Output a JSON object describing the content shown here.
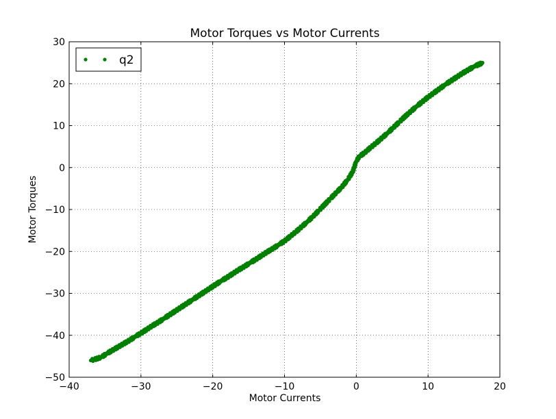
{
  "chart_data": {
    "type": "scatter",
    "title": "Motor Torques vs Motor Currents",
    "xlabel": "Motor Currents",
    "ylabel": "Motor Torques",
    "xlim": [
      -40,
      20
    ],
    "ylim": [
      -50,
      30
    ],
    "xticks": [
      -40,
      -30,
      -20,
      -10,
      0,
      10,
      20
    ],
    "yticks": [
      -50,
      -40,
      -30,
      -20,
      -10,
      0,
      10,
      20,
      30
    ],
    "xtick_labels": [
      "−40",
      "−30",
      "−20",
      "−10",
      "0",
      "10",
      "20"
    ],
    "ytick_labels": [
      "−50",
      "−40",
      "−30",
      "−20",
      "−10",
      "0",
      "10",
      "20",
      "30"
    ],
    "grid": true,
    "legend_position": "top-left",
    "series": [
      {
        "name": "q2",
        "color": "#007f00",
        "marker": "dot",
        "points": [
          [
            -37.0,
            -46.0
          ],
          [
            -36.2,
            -45.6
          ],
          [
            -35.5,
            -45.2
          ],
          [
            -34.8,
            -44.4
          ],
          [
            -34.0,
            -43.6
          ],
          [
            -33.2,
            -42.8
          ],
          [
            -32.4,
            -42.0
          ],
          [
            -31.6,
            -41.2
          ],
          [
            -30.8,
            -40.3
          ],
          [
            -30.0,
            -39.5
          ],
          [
            -29.2,
            -38.6
          ],
          [
            -28.4,
            -37.7
          ],
          [
            -27.6,
            -36.9
          ],
          [
            -26.8,
            -36.0
          ],
          [
            -26.0,
            -35.1
          ],
          [
            -25.2,
            -34.2
          ],
          [
            -24.4,
            -33.3
          ],
          [
            -23.6,
            -32.4
          ],
          [
            -22.8,
            -31.5
          ],
          [
            -22.0,
            -30.6
          ],
          [
            -21.2,
            -29.7
          ],
          [
            -20.4,
            -28.8
          ],
          [
            -19.6,
            -27.9
          ],
          [
            -18.8,
            -27.0
          ],
          [
            -18.0,
            -26.2
          ],
          [
            -17.2,
            -25.3
          ],
          [
            -16.4,
            -24.4
          ],
          [
            -15.6,
            -23.6
          ],
          [
            -14.8,
            -22.7
          ],
          [
            -14.0,
            -21.9
          ],
          [
            -13.2,
            -21.0
          ],
          [
            -12.4,
            -20.1
          ],
          [
            -11.6,
            -19.3
          ],
          [
            -10.8,
            -18.4
          ],
          [
            -10.0,
            -17.5
          ],
          [
            -9.2,
            -16.4
          ],
          [
            -8.4,
            -15.3
          ],
          [
            -7.6,
            -14.1
          ],
          [
            -6.8,
            -12.9
          ],
          [
            -6.0,
            -11.6
          ],
          [
            -5.2,
            -10.2
          ],
          [
            -4.4,
            -8.8
          ],
          [
            -3.6,
            -7.4
          ],
          [
            -2.8,
            -6.0
          ],
          [
            -2.0,
            -4.6
          ],
          [
            -1.2,
            -2.9
          ],
          [
            -0.5,
            -1.0
          ],
          [
            0.0,
            1.5
          ],
          [
            0.4,
            2.6
          ],
          [
            1.2,
            3.6
          ],
          [
            2.0,
            4.8
          ],
          [
            2.8,
            5.9
          ],
          [
            3.6,
            7.1
          ],
          [
            4.4,
            8.3
          ],
          [
            5.2,
            9.6
          ],
          [
            6.0,
            10.9
          ],
          [
            6.8,
            12.2
          ],
          [
            7.6,
            13.4
          ],
          [
            8.4,
            14.6
          ],
          [
            9.2,
            15.7
          ],
          [
            10.0,
            16.8
          ],
          [
            10.8,
            17.8
          ],
          [
            11.6,
            18.8
          ],
          [
            12.4,
            19.8
          ],
          [
            13.2,
            20.7
          ],
          [
            14.0,
            21.6
          ],
          [
            14.8,
            22.5
          ],
          [
            15.6,
            23.3
          ],
          [
            16.4,
            24.1
          ],
          [
            17.2,
            24.7
          ],
          [
            17.6,
            25.0
          ]
        ]
      }
    ]
  }
}
